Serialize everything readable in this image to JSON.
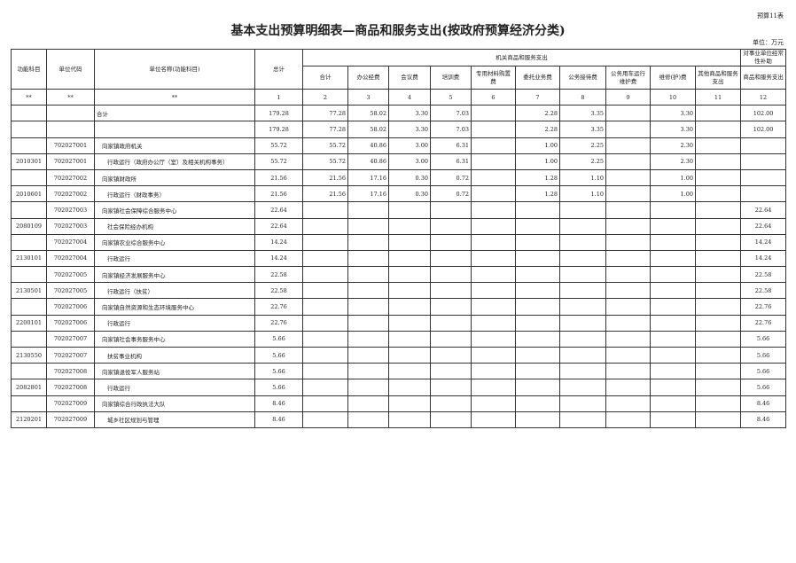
{
  "tag": "预算11表",
  "title": "基本支出预算明细表—商品和服务支出(按政府预算经济分类)",
  "unit": "单位：万元",
  "headers": {
    "func": "功能科目",
    "code": "单位代码",
    "name": "单位名称(功能科目)",
    "total": "总计",
    "group1": "机关商品和服务支出",
    "group2": "对事业单位经常性补助",
    "cols": [
      "合计",
      "办公经费",
      "会议费",
      "培训费",
      "专用材料购置费",
      "委托业务费",
      "公务接待费",
      "公务用车运行维护费",
      "维修(护)费",
      "其他商品和服务支出",
      "商品和服务支出"
    ]
  },
  "index_row": [
    "**",
    "**",
    "**",
    "1",
    "2",
    "3",
    "4",
    "5",
    "6",
    "7",
    "8",
    "9",
    "10",
    "11",
    "12"
  ],
  "rows": [
    {
      "func": "",
      "code": "",
      "name": "合计",
      "vals": [
        "179.28",
        "77.28",
        "58.02",
        "3.30",
        "7.03",
        "",
        "2.28",
        "3.35",
        "",
        "3.30",
        "",
        "102.00"
      ]
    },
    {
      "func": "",
      "code": "",
      "name": "",
      "vals": [
        "179.28",
        "77.28",
        "58.02",
        "3.30",
        "7.03",
        "",
        "2.28",
        "3.35",
        "",
        "3.30",
        "",
        "102.00"
      ]
    },
    {
      "func": "",
      "code": "702027001",
      "name": "向家镇政府机关",
      "vals": [
        "55.72",
        "55.72",
        "40.86",
        "3.00",
        "6.31",
        "",
        "1.00",
        "2.25",
        "",
        "2.30",
        "",
        ""
      ]
    },
    {
      "func": "2010301",
      "code": "702027001",
      "name": "行政运行（政府办公厅（室）及相关机构事务）",
      "sub": true,
      "vals": [
        "55.72",
        "55.72",
        "40.86",
        "3.00",
        "6.31",
        "",
        "1.00",
        "2.25",
        "",
        "2.30",
        "",
        ""
      ]
    },
    {
      "func": "",
      "code": "702027002",
      "name": "向家镇财政所",
      "vals": [
        "21.56",
        "21.56",
        "17.16",
        "0.30",
        "0.72",
        "",
        "1.28",
        "1.10",
        "",
        "1.00",
        "",
        ""
      ]
    },
    {
      "func": "2010601",
      "code": "702027002",
      "name": "行政运行（财政事务）",
      "sub": true,
      "vals": [
        "21.56",
        "21.56",
        "17.16",
        "0.30",
        "0.72",
        "",
        "1.28",
        "1.10",
        "",
        "1.00",
        "",
        ""
      ]
    },
    {
      "func": "",
      "code": "702027003",
      "name": "向家镇社会保障综合服务中心",
      "vals": [
        "22.64",
        "",
        "",
        "",
        "",
        "",
        "",
        "",
        "",
        "",
        "",
        "22.64"
      ]
    },
    {
      "func": "2080109",
      "code": "702027003",
      "name": "社会保险经办机构",
      "sub": true,
      "vals": [
        "22.64",
        "",
        "",
        "",
        "",
        "",
        "",
        "",
        "",
        "",
        "",
        "22.64"
      ]
    },
    {
      "func": "",
      "code": "702027004",
      "name": "向家镇农业综合服务中心",
      "vals": [
        "14.24",
        "",
        "",
        "",
        "",
        "",
        "",
        "",
        "",
        "",
        "",
        "14.24"
      ]
    },
    {
      "func": "2130101",
      "code": "702027004",
      "name": "行政运行",
      "sub": true,
      "vals": [
        "14.24",
        "",
        "",
        "",
        "",
        "",
        "",
        "",
        "",
        "",
        "",
        "14.24"
      ]
    },
    {
      "func": "",
      "code": "702027005",
      "name": "向家镇经济发展服务中心",
      "vals": [
        "22.58",
        "",
        "",
        "",
        "",
        "",
        "",
        "",
        "",
        "",
        "",
        "22.58"
      ]
    },
    {
      "func": "2130501",
      "code": "702027005",
      "name": "行政运行（扶贫）",
      "sub": true,
      "vals": [
        "22.58",
        "",
        "",
        "",
        "",
        "",
        "",
        "",
        "",
        "",
        "",
        "22.58"
      ]
    },
    {
      "func": "",
      "code": "702027006",
      "name": "向家镇自然资源和生态环境服务中心",
      "vals": [
        "22.76",
        "",
        "",
        "",
        "",
        "",
        "",
        "",
        "",
        "",
        "",
        "22.76"
      ]
    },
    {
      "func": "2200101",
      "code": "702027006",
      "name": "行政运行",
      "sub": true,
      "vals": [
        "22.76",
        "",
        "",
        "",
        "",
        "",
        "",
        "",
        "",
        "",
        "",
        "22.76"
      ]
    },
    {
      "func": "",
      "code": "702027007",
      "name": "向家镇社会事务服务中心",
      "vals": [
        "5.66",
        "",
        "",
        "",
        "",
        "",
        "",
        "",
        "",
        "",
        "",
        "5.66"
      ]
    },
    {
      "func": "2130550",
      "code": "702027007",
      "name": "扶贫事业机构",
      "sub": true,
      "vals": [
        "5.66",
        "",
        "",
        "",
        "",
        "",
        "",
        "",
        "",
        "",
        "",
        "5.66"
      ]
    },
    {
      "func": "",
      "code": "702027008",
      "name": "向家镇退役军人服务站",
      "vals": [
        "5.66",
        "",
        "",
        "",
        "",
        "",
        "",
        "",
        "",
        "",
        "",
        "5.66"
      ]
    },
    {
      "func": "2082801",
      "code": "702027008",
      "name": "行政运行",
      "sub": true,
      "vals": [
        "5.66",
        "",
        "",
        "",
        "",
        "",
        "",
        "",
        "",
        "",
        "",
        "5.66"
      ]
    },
    {
      "func": "",
      "code": "702027009",
      "name": "向家镇综合行政执法大队",
      "vals": [
        "8.46",
        "",
        "",
        "",
        "",
        "",
        "",
        "",
        "",
        "",
        "",
        "8.46"
      ]
    },
    {
      "func": "2120201",
      "code": "702027009",
      "name": "城乡社区规划与管理",
      "sub": true,
      "vals": [
        "8.46",
        "",
        "",
        "",
        "",
        "",
        "",
        "",
        "",
        "",
        "",
        "8.46"
      ]
    }
  ]
}
